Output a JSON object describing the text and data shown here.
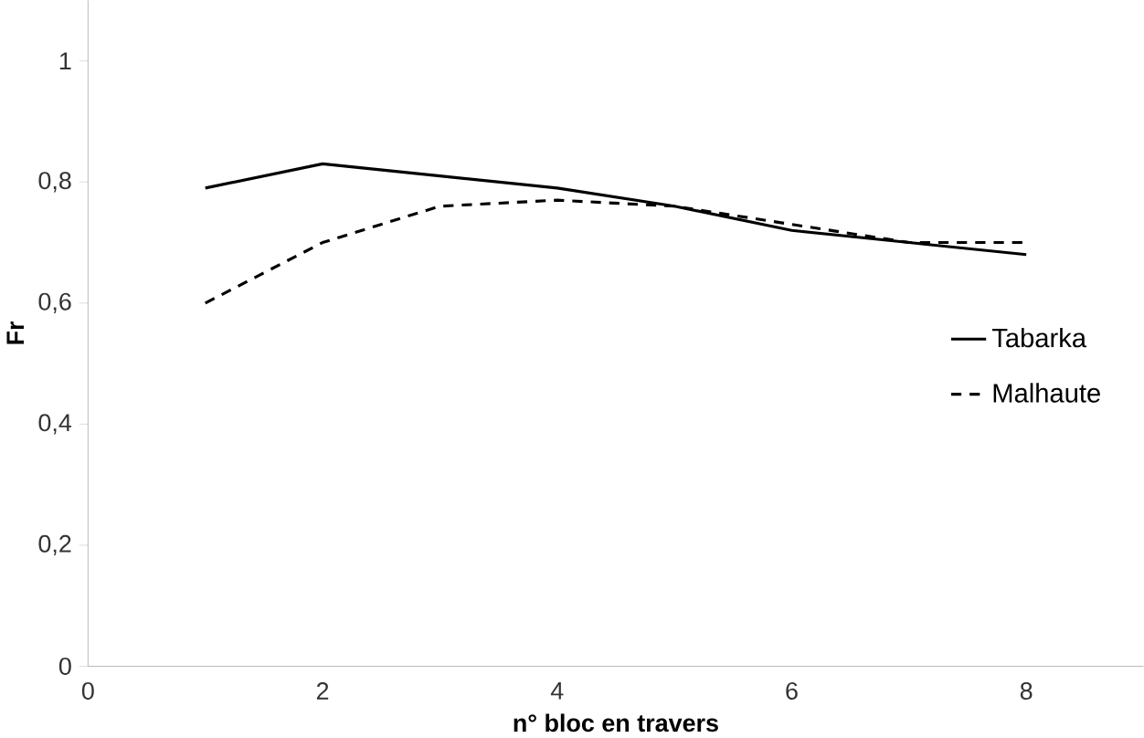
{
  "chart_data": {
    "type": "line",
    "xlabel": "n° bloc en travers",
    "ylabel": "Fr",
    "x": [
      1,
      2,
      3,
      4,
      5,
      6,
      7,
      8
    ],
    "series": [
      {
        "name": "Tabarka",
        "color": "#000000",
        "line_style": "solid",
        "values": [
          0.79,
          0.83,
          0.81,
          0.79,
          0.76,
          0.72,
          0.7,
          0.68
        ]
      },
      {
        "name": "Malhaute",
        "color": "#000000",
        "line_style": "dashed",
        "values": [
          0.6,
          0.7,
          0.76,
          0.77,
          0.76,
          0.73,
          0.7,
          0.7
        ]
      }
    ],
    "xlim": [
      0,
      9
    ],
    "ylim": [
      0,
      1.1
    ],
    "xticks": [
      0,
      2,
      4,
      6,
      8
    ],
    "yticks": [
      0,
      {
        "value": 0.2,
        "label": "0,2"
      },
      {
        "value": 0.4,
        "label": "0,4"
      },
      {
        "value": 0.6,
        "label": "0,6"
      },
      {
        "value": 0.8,
        "label": "0,8"
      },
      1
    ],
    "grid": false,
    "legend": "right",
    "marker": "none"
  }
}
